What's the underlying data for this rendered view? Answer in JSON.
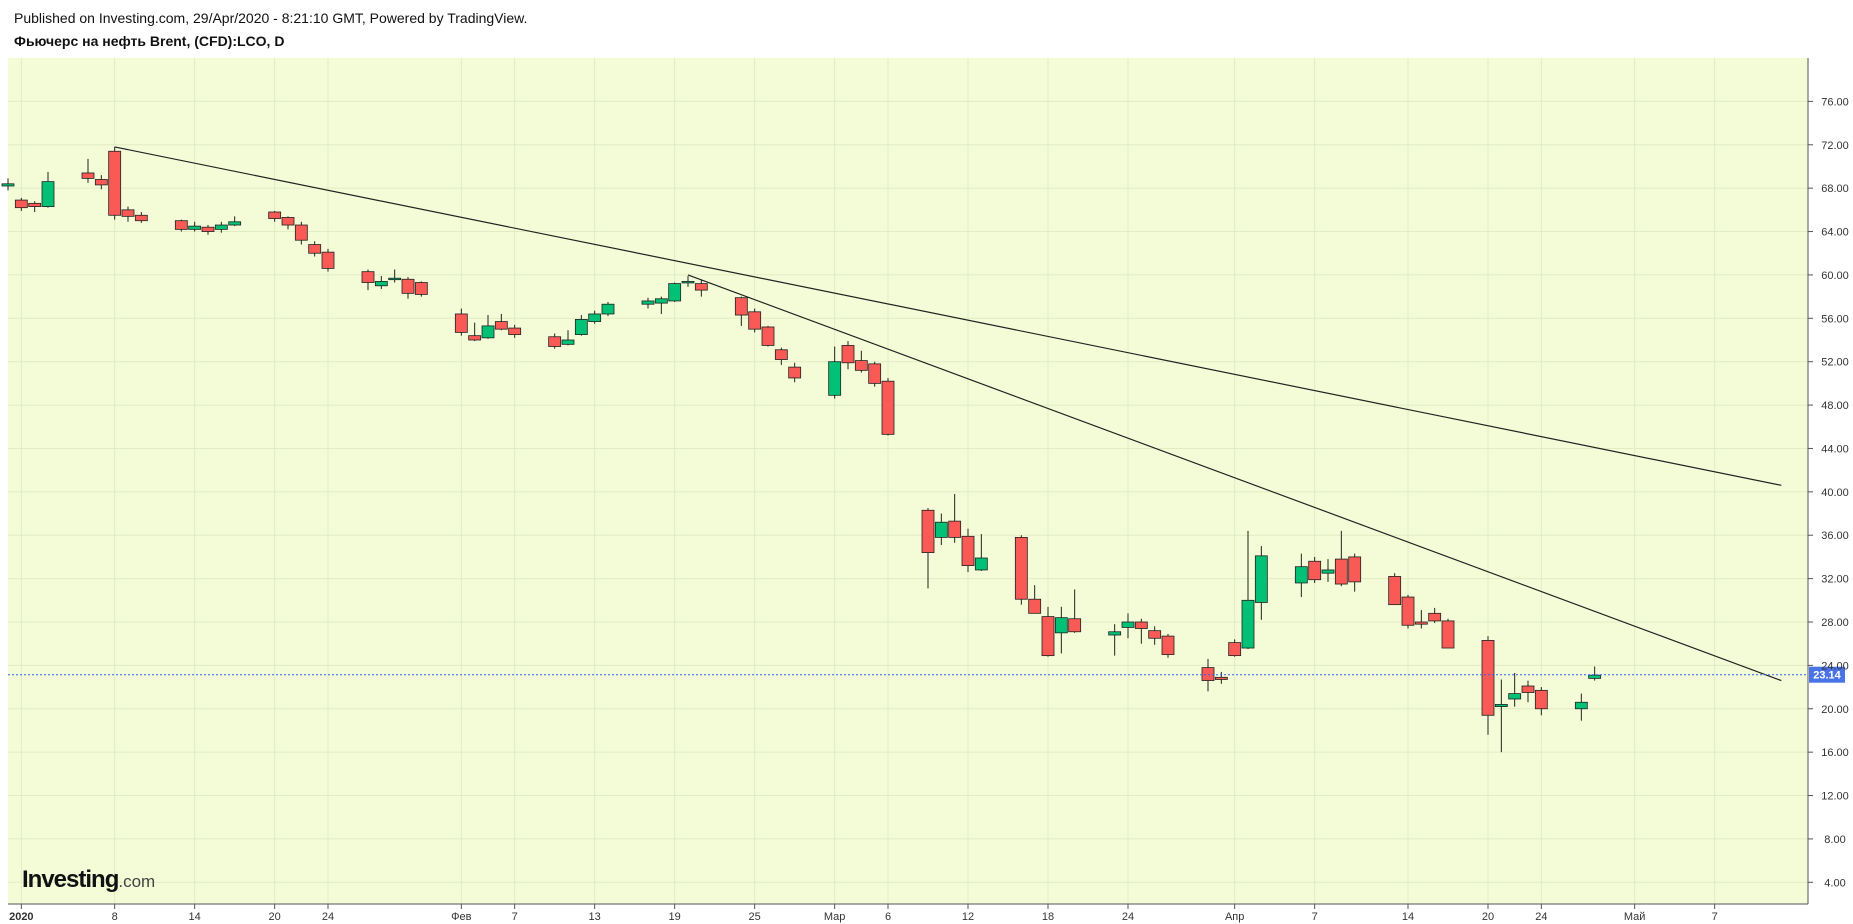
{
  "header": {
    "published": "Published on Investing.com, 29/Apr/2020 - 8:21:10 GMT, Powered by TradingView.",
    "instrument": "Фьючерс на нефть Brent, (CFD):LCO, D"
  },
  "watermark": {
    "brand": "Investing",
    "suffix": ".com"
  },
  "colors": {
    "background": "#f3fcd6",
    "up": "#00c176",
    "down": "#f95a56",
    "price_line": "#2962ff",
    "badge": "#4a73e8"
  },
  "chart_data": {
    "type": "candlestick",
    "title": "Фьючерс на нефть Brent, (CFD):LCO, D",
    "ylim": [
      2,
      80
    ],
    "y_ticks": [
      "76.00",
      "72.00",
      "68.00",
      "64.00",
      "60.00",
      "56.00",
      "52.00",
      "48.00",
      "44.00",
      "40.00",
      "36.00",
      "32.00",
      "28.00",
      "24.00",
      "20.00",
      "16.00",
      "12.00",
      "8.00",
      "4.00"
    ],
    "x_ticks": [
      {
        "label": "2020",
        "date": "2020-01-01",
        "bold": true
      },
      {
        "label": "8",
        "date": "2020-01-08"
      },
      {
        "label": "14",
        "date": "2020-01-14"
      },
      {
        "label": "20",
        "date": "2020-01-20"
      },
      {
        "label": "24",
        "date": "2020-01-24"
      },
      {
        "label": "Фев",
        "date": "2020-02-03"
      },
      {
        "label": "7",
        "date": "2020-02-07"
      },
      {
        "label": "13",
        "date": "2020-02-13"
      },
      {
        "label": "19",
        "date": "2020-02-19"
      },
      {
        "label": "25",
        "date": "2020-02-25"
      },
      {
        "label": "Мар",
        "date": "2020-03-02"
      },
      {
        "label": "6",
        "date": "2020-03-06"
      },
      {
        "label": "12",
        "date": "2020-03-12"
      },
      {
        "label": "18",
        "date": "2020-03-18"
      },
      {
        "label": "24",
        "date": "2020-03-24"
      },
      {
        "label": "Апр",
        "date": "2020-04-01"
      },
      {
        "label": "7",
        "date": "2020-04-07"
      },
      {
        "label": "14",
        "date": "2020-04-14"
      },
      {
        "label": "20",
        "date": "2020-04-20"
      },
      {
        "label": "24",
        "date": "2020-04-24"
      },
      {
        "label": "Май",
        "date": "2020-05-01"
      },
      {
        "label": "7",
        "date": "2020-05-07"
      }
    ],
    "candles": [
      {
        "date": "2019-12-31",
        "o": 68.2,
        "h": 68.9,
        "l": 67.8,
        "c": 68.4
      },
      {
        "date": "2020-01-01",
        "o": 66.9,
        "h": 67.1,
        "l": 65.9,
        "c": 66.2
      },
      {
        "date": "2020-01-02",
        "o": 66.6,
        "h": 66.8,
        "l": 65.8,
        "c": 66.3
      },
      {
        "date": "2020-01-03",
        "o": 66.3,
        "h": 69.5,
        "l": 66.2,
        "c": 68.6
      },
      {
        "date": "2020-01-06",
        "o": 69.4,
        "h": 70.7,
        "l": 68.5,
        "c": 68.9
      },
      {
        "date": "2020-01-07",
        "o": 68.8,
        "h": 69.2,
        "l": 67.9,
        "c": 68.3
      },
      {
        "date": "2020-01-08",
        "o": 71.4,
        "h": 71.8,
        "l": 65.1,
        "c": 65.5
      },
      {
        "date": "2020-01-09",
        "o": 66.0,
        "h": 66.3,
        "l": 64.9,
        "c": 65.4
      },
      {
        "date": "2020-01-10",
        "o": 65.5,
        "h": 65.8,
        "l": 64.8,
        "c": 65.0
      },
      {
        "date": "2020-01-13",
        "o": 65.0,
        "h": 65.1,
        "l": 64.0,
        "c": 64.2
      },
      {
        "date": "2020-01-14",
        "o": 64.2,
        "h": 64.9,
        "l": 64.0,
        "c": 64.5
      },
      {
        "date": "2020-01-15",
        "o": 64.4,
        "h": 64.6,
        "l": 63.7,
        "c": 64.0
      },
      {
        "date": "2020-01-16",
        "o": 64.2,
        "h": 64.9,
        "l": 63.9,
        "c": 64.6
      },
      {
        "date": "2020-01-17",
        "o": 64.6,
        "h": 65.4,
        "l": 64.5,
        "c": 64.9
      },
      {
        "date": "2020-01-20",
        "o": 65.8,
        "h": 65.9,
        "l": 64.9,
        "c": 65.2
      },
      {
        "date": "2020-01-21",
        "o": 65.3,
        "h": 65.4,
        "l": 64.2,
        "c": 64.6
      },
      {
        "date": "2020-01-22",
        "o": 64.6,
        "h": 64.9,
        "l": 62.8,
        "c": 63.2
      },
      {
        "date": "2020-01-23",
        "o": 62.8,
        "h": 63.1,
        "l": 61.7,
        "c": 62.0
      },
      {
        "date": "2020-01-24",
        "o": 62.1,
        "h": 62.4,
        "l": 60.3,
        "c": 60.6
      },
      {
        "date": "2020-01-27",
        "o": 60.3,
        "h": 60.5,
        "l": 58.6,
        "c": 59.3
      },
      {
        "date": "2020-01-28",
        "o": 59.0,
        "h": 59.9,
        "l": 58.7,
        "c": 59.4
      },
      {
        "date": "2020-01-29",
        "o": 59.7,
        "h": 60.5,
        "l": 59.3,
        "c": 59.7
      },
      {
        "date": "2020-01-30",
        "o": 59.6,
        "h": 59.8,
        "l": 57.8,
        "c": 58.3
      },
      {
        "date": "2020-01-31",
        "o": 59.3,
        "h": 59.4,
        "l": 58.0,
        "c": 58.2
      },
      {
        "date": "2020-02-03",
        "o": 56.4,
        "h": 56.9,
        "l": 54.4,
        "c": 54.7
      },
      {
        "date": "2020-02-04",
        "o": 54.4,
        "h": 55.6,
        "l": 53.9,
        "c": 54.0
      },
      {
        "date": "2020-02-05",
        "o": 54.2,
        "h": 56.3,
        "l": 54.1,
        "c": 55.3
      },
      {
        "date": "2020-02-06",
        "o": 55.7,
        "h": 56.4,
        "l": 54.9,
        "c": 55.0
      },
      {
        "date": "2020-02-07",
        "o": 55.1,
        "h": 55.4,
        "l": 54.2,
        "c": 54.5
      },
      {
        "date": "2020-02-10",
        "o": 54.3,
        "h": 54.6,
        "l": 53.2,
        "c": 53.4
      },
      {
        "date": "2020-02-11",
        "o": 53.6,
        "h": 54.9,
        "l": 53.5,
        "c": 54.0
      },
      {
        "date": "2020-02-12",
        "o": 54.5,
        "h": 56.3,
        "l": 54.4,
        "c": 55.9
      },
      {
        "date": "2020-02-13",
        "o": 55.7,
        "h": 56.7,
        "l": 55.5,
        "c": 56.4
      },
      {
        "date": "2020-02-14",
        "o": 56.4,
        "h": 57.5,
        "l": 56.2,
        "c": 57.3
      },
      {
        "date": "2020-02-17",
        "o": 57.3,
        "h": 57.9,
        "l": 56.9,
        "c": 57.6
      },
      {
        "date": "2020-02-18",
        "o": 57.4,
        "h": 58.0,
        "l": 56.4,
        "c": 57.8
      },
      {
        "date": "2020-02-19",
        "o": 57.6,
        "h": 59.3,
        "l": 57.5,
        "c": 59.2
      },
      {
        "date": "2020-02-20",
        "o": 59.3,
        "h": 59.9,
        "l": 58.9,
        "c": 59.4
      },
      {
        "date": "2020-02-21",
        "o": 59.2,
        "h": 59.5,
        "l": 58.0,
        "c": 58.6
      },
      {
        "date": "2020-02-24",
        "o": 57.9,
        "h": 58.0,
        "l": 55.3,
        "c": 56.3
      },
      {
        "date": "2020-02-25",
        "o": 56.6,
        "h": 56.9,
        "l": 54.7,
        "c": 55.0
      },
      {
        "date": "2020-02-26",
        "o": 55.2,
        "h": 55.3,
        "l": 53.4,
        "c": 53.5
      },
      {
        "date": "2020-02-27",
        "o": 53.1,
        "h": 53.3,
        "l": 51.7,
        "c": 52.2
      },
      {
        "date": "2020-02-28",
        "o": 51.5,
        "h": 51.9,
        "l": 50.1,
        "c": 50.5
      },
      {
        "date": "2020-03-02",
        "o": 48.9,
        "h": 53.4,
        "l": 48.6,
        "c": 52.0
      },
      {
        "date": "2020-03-03",
        "o": 53.5,
        "h": 53.9,
        "l": 51.3,
        "c": 51.9
      },
      {
        "date": "2020-03-04",
        "o": 52.1,
        "h": 53.0,
        "l": 51.0,
        "c": 51.2
      },
      {
        "date": "2020-03-05",
        "o": 51.8,
        "h": 52.0,
        "l": 49.7,
        "c": 50.0
      },
      {
        "date": "2020-03-06",
        "o": 50.2,
        "h": 50.5,
        "l": 45.2,
        "c": 45.3
      },
      {
        "date": "2020-03-09",
        "o": 38.3,
        "h": 38.5,
        "l": 31.1,
        "c": 34.4
      },
      {
        "date": "2020-03-10",
        "o": 35.8,
        "h": 38.0,
        "l": 35.1,
        "c": 37.2
      },
      {
        "date": "2020-03-11",
        "o": 37.3,
        "h": 39.8,
        "l": 35.3,
        "c": 35.8
      },
      {
        "date": "2020-03-12",
        "o": 35.9,
        "h": 36.6,
        "l": 32.6,
        "c": 33.2
      },
      {
        "date": "2020-03-13",
        "o": 32.8,
        "h": 36.1,
        "l": 32.7,
        "c": 33.9
      },
      {
        "date": "2020-03-16",
        "o": 35.8,
        "h": 36.0,
        "l": 29.6,
        "c": 30.1
      },
      {
        "date": "2020-03-17",
        "o": 30.1,
        "h": 31.4,
        "l": 28.9,
        "c": 28.8
      },
      {
        "date": "2020-03-18",
        "o": 28.5,
        "h": 29.4,
        "l": 24.8,
        "c": 24.9
      },
      {
        "date": "2020-03-19",
        "o": 27.0,
        "h": 29.4,
        "l": 25.1,
        "c": 28.4
      },
      {
        "date": "2020-03-20",
        "o": 28.3,
        "h": 31.0,
        "l": 27.0,
        "c": 27.1
      },
      {
        "date": "2020-03-23",
        "o": 26.8,
        "h": 27.8,
        "l": 24.9,
        "c": 27.1
      },
      {
        "date": "2020-03-24",
        "o": 27.5,
        "h": 28.8,
        "l": 26.5,
        "c": 28.0
      },
      {
        "date": "2020-03-25",
        "o": 28.0,
        "h": 28.3,
        "l": 26.0,
        "c": 27.4
      },
      {
        "date": "2020-03-26",
        "o": 27.2,
        "h": 27.6,
        "l": 25.9,
        "c": 26.5
      },
      {
        "date": "2020-03-27",
        "o": 26.7,
        "h": 26.9,
        "l": 24.7,
        "c": 25.0
      },
      {
        "date": "2020-03-30",
        "o": 23.8,
        "h": 24.6,
        "l": 21.6,
        "c": 22.6
      },
      {
        "date": "2020-03-31",
        "o": 22.9,
        "h": 23.4,
        "l": 22.3,
        "c": 22.7
      },
      {
        "date": "2020-04-01",
        "o": 26.1,
        "h": 26.4,
        "l": 24.8,
        "c": 24.9
      },
      {
        "date": "2020-04-02",
        "o": 25.6,
        "h": 36.4,
        "l": 25.5,
        "c": 30.0
      },
      {
        "date": "2020-04-03",
        "o": 29.8,
        "h": 35.0,
        "l": 28.2,
        "c": 34.1
      },
      {
        "date": "2020-04-06",
        "o": 31.6,
        "h": 34.3,
        "l": 30.3,
        "c": 33.1
      },
      {
        "date": "2020-04-07",
        "o": 33.6,
        "h": 34.0,
        "l": 31.6,
        "c": 31.9
      },
      {
        "date": "2020-04-08",
        "o": 32.5,
        "h": 33.8,
        "l": 31.7,
        "c": 32.8
      },
      {
        "date": "2020-04-09",
        "o": 33.8,
        "h": 36.4,
        "l": 31.3,
        "c": 31.5
      },
      {
        "date": "2020-04-10",
        "o": 34.0,
        "h": 34.3,
        "l": 30.8,
        "c": 31.7
      },
      {
        "date": "2020-04-13",
        "o": 32.2,
        "h": 32.5,
        "l": 29.8,
        "c": 29.6
      },
      {
        "date": "2020-04-14",
        "o": 30.3,
        "h": 30.5,
        "l": 27.4,
        "c": 27.7
      },
      {
        "date": "2020-04-15",
        "o": 28.0,
        "h": 29.1,
        "l": 27.4,
        "c": 27.8
      },
      {
        "date": "2020-04-16",
        "o": 28.8,
        "h": 29.3,
        "l": 27.9,
        "c": 28.1
      },
      {
        "date": "2020-04-17",
        "o": 28.1,
        "h": 28.3,
        "l": 25.6,
        "c": 25.6
      },
      {
        "date": "2020-04-20",
        "o": 26.3,
        "h": 26.7,
        "l": 17.6,
        "c": 19.4
      },
      {
        "date": "2020-04-21",
        "o": 20.2,
        "h": 22.7,
        "l": 16.0,
        "c": 20.4
      },
      {
        "date": "2020-04-22",
        "o": 20.9,
        "h": 23.3,
        "l": 20.2,
        "c": 21.4
      },
      {
        "date": "2020-04-23",
        "o": 22.1,
        "h": 22.6,
        "l": 20.6,
        "c": 21.5
      },
      {
        "date": "2020-04-24",
        "o": 21.7,
        "h": 22.0,
        "l": 19.4,
        "c": 20.0
      },
      {
        "date": "2020-04-27",
        "o": 20.0,
        "h": 21.4,
        "l": 18.9,
        "c": 20.6
      },
      {
        "date": "2020-04-28",
        "o": 22.8,
        "h": 23.9,
        "l": 22.6,
        "c": 23.1
      }
    ],
    "trendlines": [
      {
        "from": {
          "date": "2020-01-08",
          "value": 71.8
        },
        "to": {
          "date": "2020-05-12",
          "value": 40.6
        }
      },
      {
        "from": {
          "date": "2020-02-20",
          "value": 60.0
        },
        "to": {
          "date": "2020-05-12",
          "value": 22.6
        }
      }
    ],
    "last_price": 23.14,
    "last_price_label": "23.14"
  }
}
